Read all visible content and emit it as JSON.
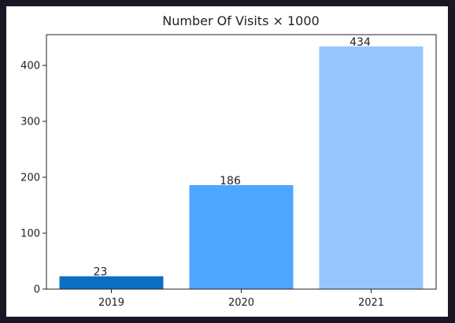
{
  "chart_data": {
    "type": "bar",
    "title": "Number Of Visits × 1000",
    "xlabel": "",
    "ylabel": "",
    "categories": [
      "2019",
      "2020",
      "2021"
    ],
    "values": [
      23,
      186,
      434
    ],
    "data_labels": [
      "23",
      "186",
      "434"
    ],
    "ylim": [
      0,
      455
    ],
    "yticks": [
      0,
      100,
      200,
      300,
      400
    ],
    "ytick_labels": [
      "0",
      "100",
      "200",
      "300",
      "400"
    ],
    "bar_colors": [
      "#0a6fc2",
      "#4da6ff",
      "#99c5ff"
    ],
    "grid": false,
    "legend": "none"
  }
}
